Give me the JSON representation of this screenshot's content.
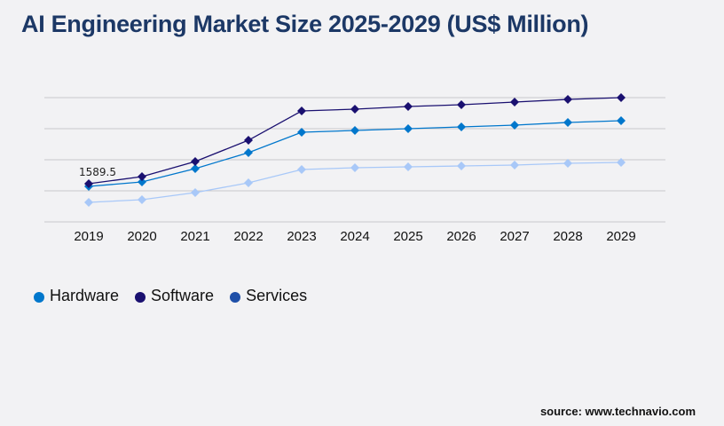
{
  "title": "AI Engineering Market Size 2025-2029 (US$ Million)",
  "source": "source: www.technavio.com",
  "chart_data": {
    "type": "line",
    "title": "AI Engineering Market Size 2025-2029 (US$ Million)",
    "categories": [
      "2019",
      "2020",
      "2021",
      "2022",
      "2023",
      "2024",
      "2025",
      "2026",
      "2027",
      "2028",
      "2029"
    ],
    "ylim": [
      0,
      5176
    ],
    "grid": true,
    "legend_placement": "bottom-left",
    "series": [
      {
        "name": "Hardware",
        "color": "#0077cc",
        "legend_color": "#0077cc",
        "values": [
          1479,
          1664,
          2218,
          2884,
          3734,
          3808,
          3882,
          3956,
          4030,
          4141,
          4215
        ]
      },
      {
        "name": "Software",
        "color": "#1a1070",
        "legend_color": "#1a1070",
        "values": [
          1589.5,
          1885,
          2514,
          3401,
          4621,
          4695,
          4806,
          4880,
          4991,
          5102,
          5176
        ]
      },
      {
        "name": "Services",
        "color": "#a8c8f8",
        "legend_color": "#1e4fa8",
        "values": [
          813,
          924,
          1220,
          1627,
          2181,
          2255,
          2292,
          2329,
          2366,
          2440,
          2477
        ]
      }
    ],
    "annotations": [
      {
        "series": "Software",
        "category": "2019",
        "text": "1589.5"
      }
    ]
  }
}
